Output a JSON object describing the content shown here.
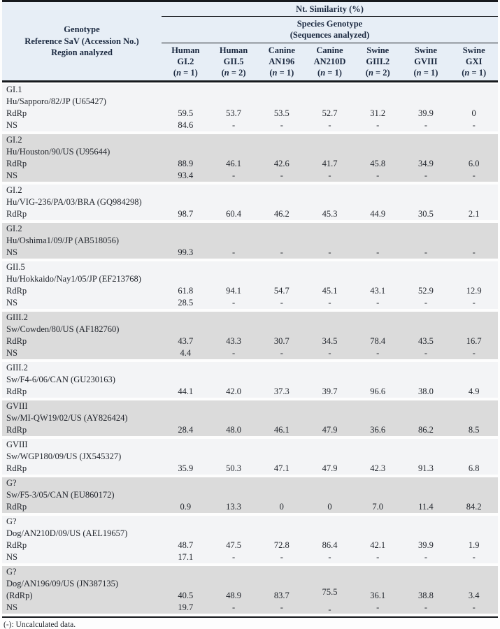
{
  "colors": {
    "header_bg": "#e7eef6",
    "header_text": "#1b2940",
    "body_text": "#23272e",
    "light_bg": "#f3f4f6",
    "gray_bg": "#dbdbdb",
    "rule": "#16191d"
  },
  "table": {
    "corner_header": [
      "Genotype",
      "Reference SaV (Accession No.)",
      "Region analyzed"
    ],
    "top_header": "Nt. Similarity (%)",
    "species_header": [
      "Species Genotype",
      "(Sequences analyzed)"
    ],
    "columns": [
      {
        "species": "Human",
        "genotype": "GI.2",
        "n_label": "(n = 1)"
      },
      {
        "species": "Human",
        "genotype": "GII.5",
        "n_label": "(n = 2)"
      },
      {
        "species": "Canine",
        "genotype": "AN196",
        "n_label": "(n = 1)"
      },
      {
        "species": "Canine",
        "genotype": "AN210D",
        "n_label": "(n = 1)"
      },
      {
        "species": "Swine",
        "genotype": "GIII.2",
        "n_label": "(n = 2)"
      },
      {
        "species": "Swine",
        "genotype": "GVIII",
        "n_label": "(n = 1)"
      },
      {
        "species": "Swine",
        "genotype": "GXI",
        "n_label": "(n = 1)"
      }
    ],
    "blocks": [
      {
        "genotype": "GI.1",
        "reference": "Hu/Sapporo/82/JP (U65427)",
        "shade": "light",
        "rows": [
          {
            "label": "RdRp",
            "values": [
              "59.5",
              "53.7",
              "53.5",
              "52.7",
              "31.2",
              "39.9",
              "0"
            ]
          },
          {
            "label": "NS",
            "values": [
              "84.6",
              "-",
              "-",
              "-",
              "-",
              "-",
              "-"
            ]
          }
        ]
      },
      {
        "genotype": "GI.2",
        "reference": "Hu/Houston/90/US (U95644)",
        "shade": "gray",
        "rows": [
          {
            "label": "RdRp",
            "values": [
              "88.9",
              "46.1",
              "42.6",
              "41.7",
              "45.8",
              "34.9",
              "6.0"
            ]
          },
          {
            "label": "NS",
            "values": [
              "93.4",
              "-",
              "-",
              "-",
              "-",
              "-",
              "-"
            ]
          }
        ]
      },
      {
        "genotype": "GI.2",
        "reference": "Hu/VIG-236/PA/03/BRA (GQ984298)",
        "shade": "light",
        "rows": [
          {
            "label": "RdRp",
            "values": [
              "98.7",
              "60.4",
              "46.2",
              "45.3",
              "44.9",
              "30.5",
              "2.1"
            ]
          }
        ]
      },
      {
        "genotype": "GI.2",
        "reference": "Hu/Oshima1/09/JP (AB518056)",
        "shade": "gray",
        "rows": [
          {
            "label": "NS",
            "values": [
              "99.3",
              "-",
              "-",
              "-",
              "-",
              "-",
              "-"
            ]
          }
        ]
      },
      {
        "genotype": "GII.5",
        "reference": "Hu/Hokkaido/Nay1/05/JP (EF213768)",
        "shade": "light",
        "rows": [
          {
            "label": "RdRp",
            "values": [
              "61.8",
              "94.1",
              "54.7",
              "45.1",
              "43.1",
              "52.9",
              "12.9"
            ]
          },
          {
            "label": "NS",
            "values": [
              "28.5",
              "-",
              "-",
              "-",
              "-",
              "-",
              "-"
            ]
          }
        ]
      },
      {
        "genotype": "GIII.2",
        "reference": "Sw/Cowden/80/US (AF182760)",
        "shade": "gray",
        "rows": [
          {
            "label": "RdRp",
            "values": [
              "43.7",
              "43.3",
              "30.7",
              "34.5",
              "78.4",
              "43.5",
              "16.7"
            ]
          },
          {
            "label": "NS",
            "values": [
              "4.4",
              "-",
              "-",
              "-",
              "-",
              "-",
              "-"
            ]
          }
        ]
      },
      {
        "genotype": "GIII.2",
        "reference": "Sw/F4-6/06/CAN (GU230163)",
        "shade": "light",
        "rows": [
          {
            "label": "RdRp",
            "values": [
              "44.1",
              "42.0",
              "37.3",
              "39.7",
              "96.6",
              "38.0",
              "4.9"
            ]
          }
        ]
      },
      {
        "genotype": "GVIII",
        "reference": "Sw/MI-QW19/02/US (AY826424)",
        "shade": "gray",
        "rows": [
          {
            "label": "RdRp",
            "values": [
              "28.4",
              "48.0",
              "46.1",
              "47.9",
              "36.6",
              "86.2",
              "8.5"
            ]
          }
        ]
      },
      {
        "genotype": "GVIII",
        "reference": "Sw/WGP180/09/US (JX545327)",
        "shade": "light",
        "rows": [
          {
            "label": "RdRp",
            "values": [
              "35.9",
              "50.3",
              "47.1",
              "47.9",
              "42.3",
              "91.3",
              "6.8"
            ]
          }
        ]
      },
      {
        "genotype": "G?",
        "reference": "Sw/F5-3/05/CAN (EU860172)",
        "shade": "gray",
        "rows": [
          {
            "label": "RdRp",
            "values": [
              "0.9",
              "13.3",
              "0",
              "0",
              "7.0",
              "11.4",
              "84.2"
            ]
          }
        ]
      },
      {
        "genotype": "G?",
        "reference": "Dog/AN210D/09/US (AEL19657)",
        "shade": "light",
        "rows": [
          {
            "label": "RdRp",
            "values": [
              "48.7",
              "47.5",
              "72.8",
              "86.4",
              "42.1",
              "39.9",
              "1.9"
            ]
          },
          {
            "label": "NS",
            "values": [
              "17.1",
              "-",
              "-",
              "-",
              "-",
              "-",
              "-"
            ]
          }
        ]
      },
      {
        "genotype": "G?",
        "reference": "Dog/AN196/09/US (JN387135)",
        "shade": "gray",
        "rows": [
          {
            "label": "(RdRp)",
            "values": [
              "40.5",
              "48.9",
              "83.7",
              "75.5",
              "36.1",
              "38.8",
              "3.4"
            ],
            "offsets": [
              0,
              0,
              0,
              -5,
              0,
              0,
              0
            ]
          },
          {
            "label": "NS",
            "values": [
              "19.7",
              "-",
              "-",
              "-",
              "-",
              "-",
              "-"
            ],
            "offsets": [
              0,
              0,
              0,
              3,
              0,
              0,
              0
            ]
          }
        ]
      }
    ],
    "footnote": "(-): Uncalculated data."
  }
}
